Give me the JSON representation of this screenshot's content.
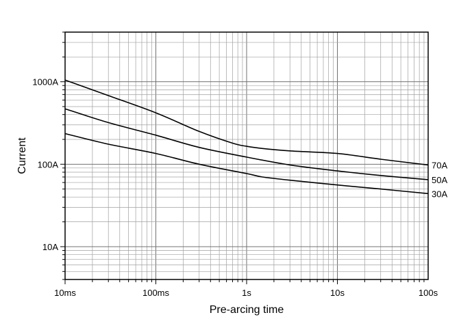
{
  "chart_data": {
    "type": "line",
    "title": "",
    "xlabel": "Pre-arcing time",
    "ylabel": "Current",
    "x_scale": "log",
    "y_scale": "log",
    "xlim": [
      0.01,
      100
    ],
    "ylim": [
      4,
      4000
    ],
    "grid": true,
    "legend": "none (series labels at right end of lines)",
    "x_ticks": [
      {
        "value": 0.01,
        "label": "10ms"
      },
      {
        "value": 0.1,
        "label": "100ms"
      },
      {
        "value": 1,
        "label": "1s"
      },
      {
        "value": 10,
        "label": "10s"
      },
      {
        "value": 100,
        "label": "100s"
      }
    ],
    "y_ticks": [
      {
        "value": 10,
        "label": "10A"
      },
      {
        "value": 100,
        "label": "100A"
      },
      {
        "value": 1000,
        "label": "1000A"
      }
    ],
    "series": [
      {
        "name": "70A",
        "points": [
          [
            0.01,
            1050
          ],
          [
            0.03,
            680
          ],
          [
            0.1,
            420
          ],
          [
            0.3,
            250
          ],
          [
            0.7,
            180
          ],
          [
            1,
            165
          ],
          [
            1.5,
            155
          ],
          [
            3,
            145
          ],
          [
            10,
            135
          ],
          [
            30,
            115
          ],
          [
            100,
            98
          ]
        ]
      },
      {
        "name": "50A",
        "points": [
          [
            0.01,
            470
          ],
          [
            0.03,
            320
          ],
          [
            0.1,
            225
          ],
          [
            0.3,
            160
          ],
          [
            1,
            122
          ],
          [
            3,
            98
          ],
          [
            10,
            83
          ],
          [
            30,
            73
          ],
          [
            100,
            65
          ]
        ]
      },
      {
        "name": "30A",
        "points": [
          [
            0.01,
            235
          ],
          [
            0.03,
            175
          ],
          [
            0.1,
            135
          ],
          [
            0.3,
            100
          ],
          [
            1,
            77
          ],
          [
            1.5,
            70
          ],
          [
            3,
            64
          ],
          [
            10,
            56
          ],
          [
            30,
            50
          ],
          [
            100,
            44
          ]
        ]
      }
    ],
    "line_color": "#000000",
    "grid_color": "#a0a0a0"
  }
}
